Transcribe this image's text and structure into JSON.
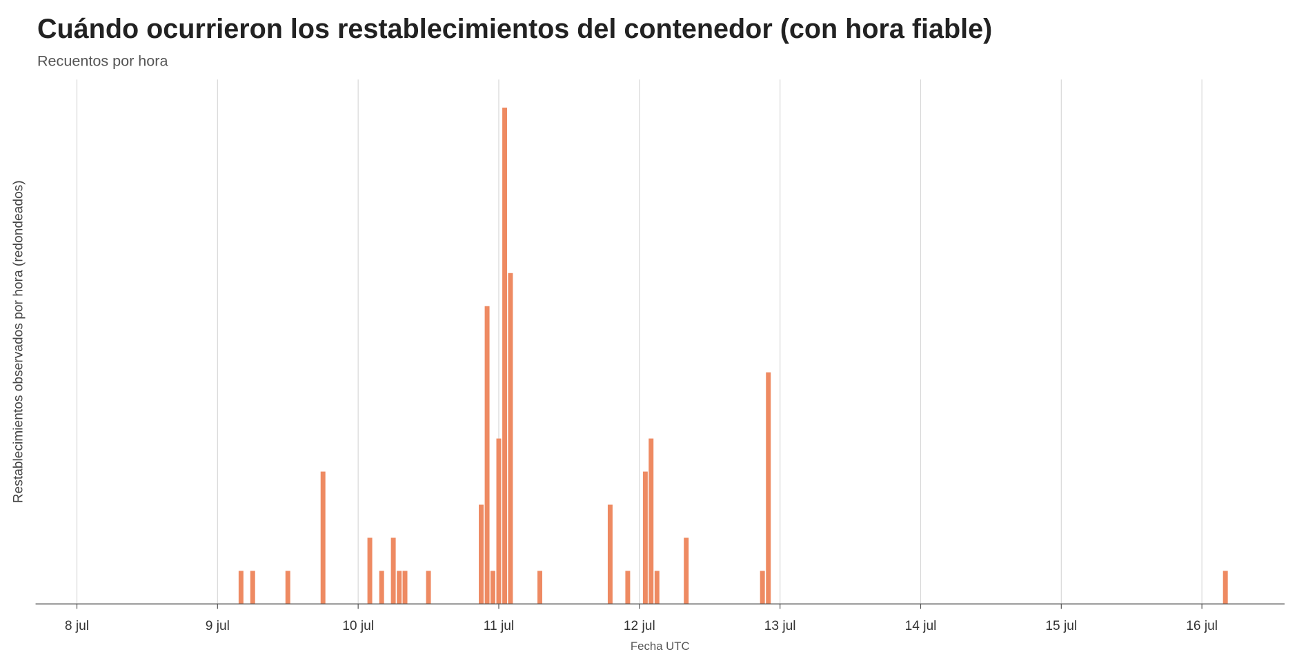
{
  "chart_data": {
    "type": "bar",
    "title": "Cuándo ocurrieron los restablecimientos del contenedor (con hora fiable)",
    "subtitle": "Recuentos por hora",
    "x_label": "Fecha UTC",
    "y_label": "Restablecimientos observados por hora (redondeados)",
    "color": "#ee8a62",
    "grid": true,
    "x": [
      9.167,
      9.25,
      9.5,
      9.75,
      10.083,
      10.167,
      10.25,
      10.292,
      10.333,
      10.5,
      10.875,
      10.917,
      10.958,
      11.0,
      11.042,
      11.083,
      11.292,
      11.792,
      11.917,
      12.042,
      12.083,
      12.125,
      12.333,
      12.875,
      12.917,
      16.167
    ],
    "values": [
      1,
      1,
      1,
      4,
      2,
      1,
      2,
      1,
      1,
      1,
      3,
      9,
      1,
      5,
      15,
      10,
      1,
      3,
      1,
      4,
      5,
      1,
      2,
      1,
      7,
      1
    ],
    "xlim": [
      7.706,
      16.588
    ],
    "ylim": [
      0,
      15.85
    ],
    "xticks": [
      {
        "value": 8,
        "label": "8 jul"
      },
      {
        "value": 9,
        "label": "9 jul"
      },
      {
        "value": 10,
        "label": "10 jul"
      },
      {
        "value": 11,
        "label": "11 jul"
      },
      {
        "value": 12,
        "label": "12 jul"
      },
      {
        "value": 13,
        "label": "13 jul"
      },
      {
        "value": 14,
        "label": "14 jul"
      },
      {
        "value": 15,
        "label": "15 jul"
      },
      {
        "value": 16,
        "label": "16 jul"
      }
    ]
  }
}
